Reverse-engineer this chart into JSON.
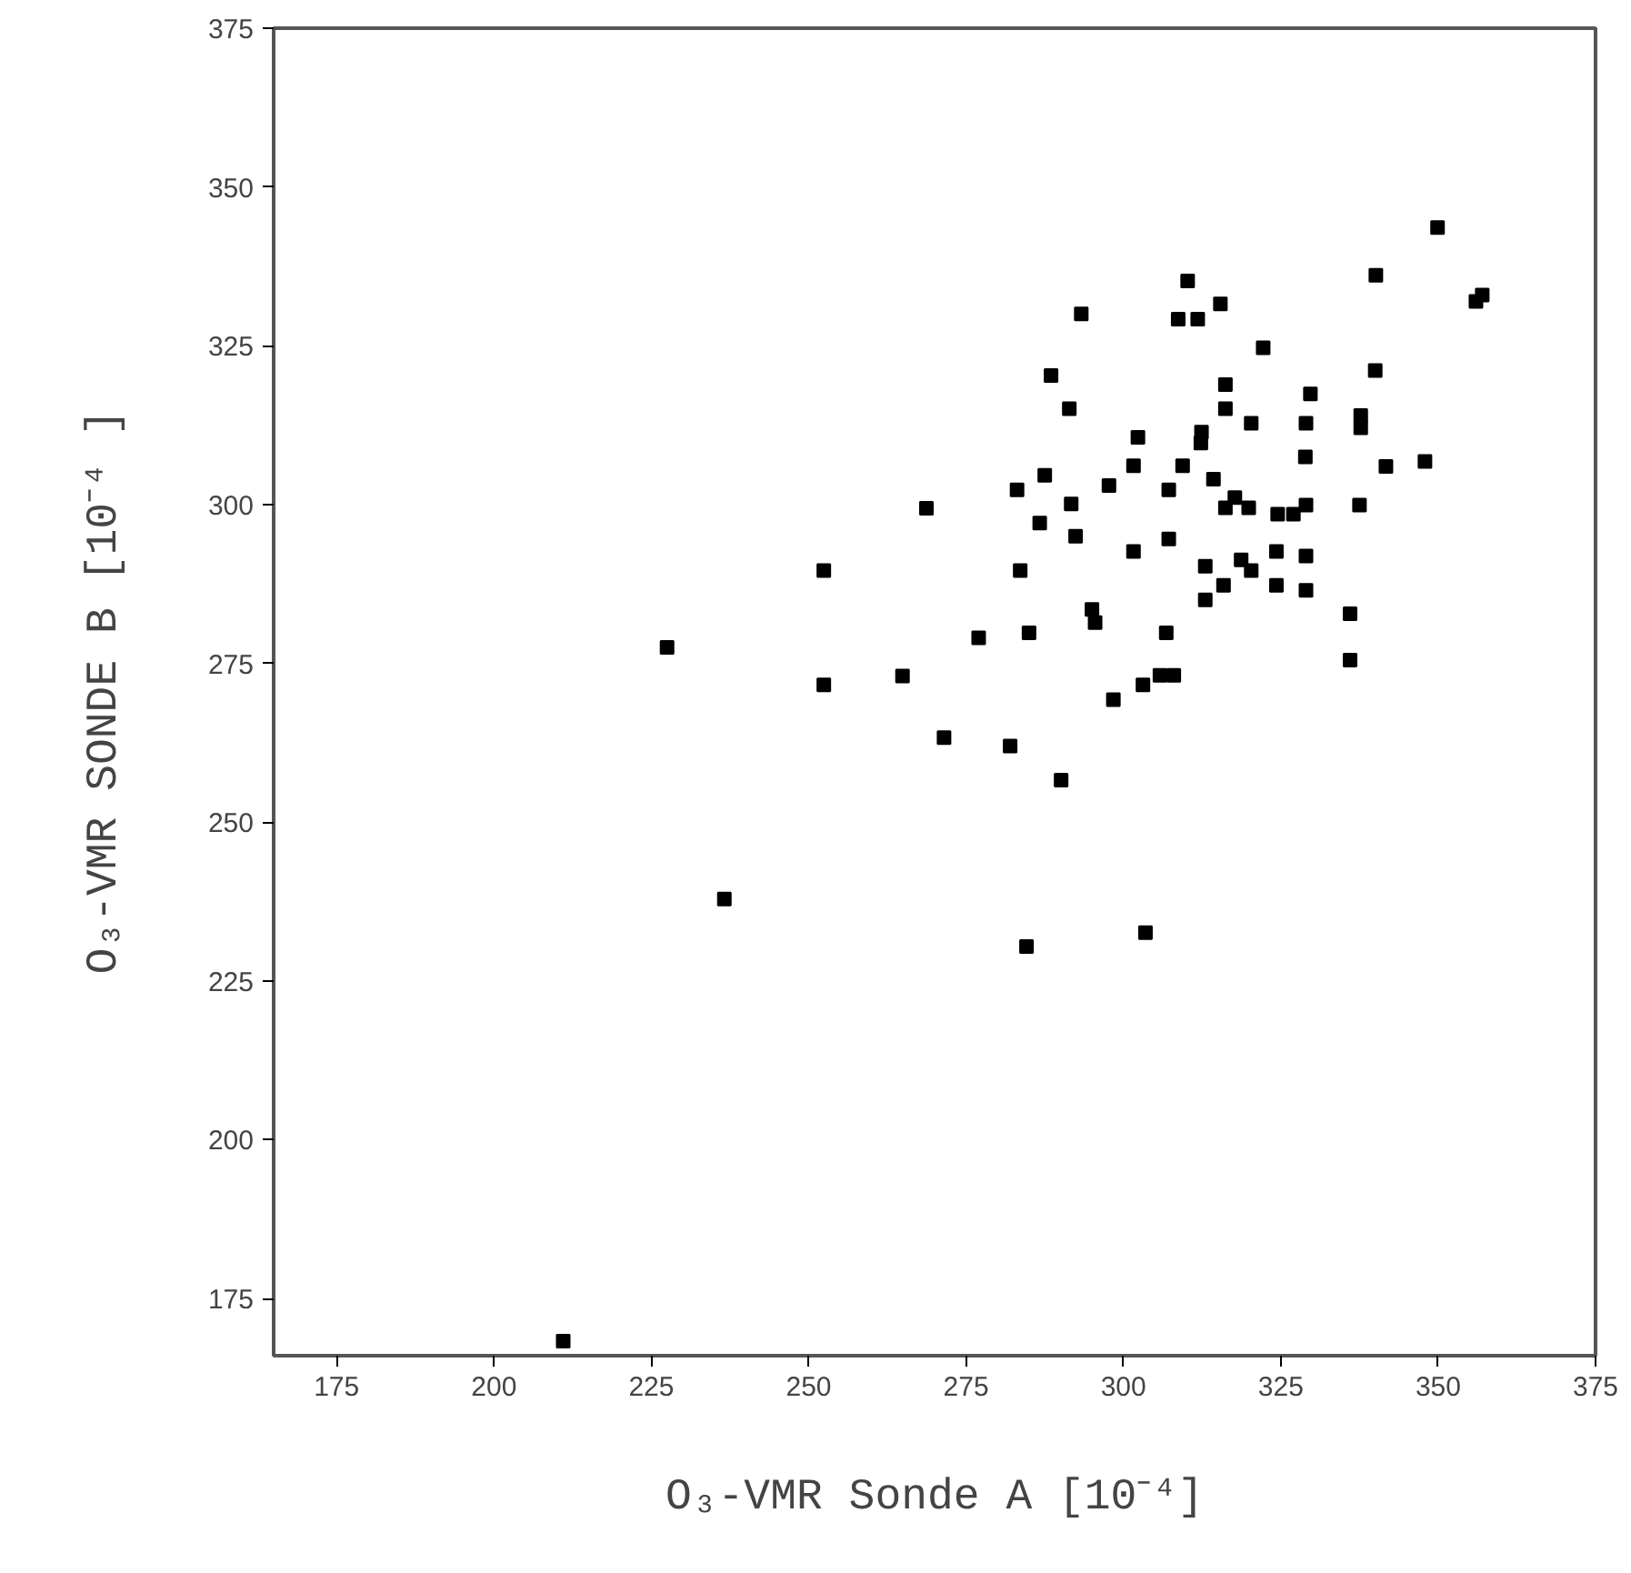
{
  "chart_data": {
    "type": "scatter",
    "xlabel": "O₃-VMR Sonde A [10⁻⁴]",
    "ylabel": "O₃-VMR SONDE B [10⁻⁴ ]",
    "xlim": [
      165,
      375
    ],
    "ylim": [
      166,
      375
    ],
    "xticks": [
      175,
      200,
      225,
      250,
      275,
      300,
      325,
      350,
      375
    ],
    "yticks": [
      175,
      200,
      225,
      250,
      275,
      300,
      325,
      350,
      375
    ],
    "grid": false,
    "marker": "square",
    "series": [
      {
        "color": "#000000",
        "x": [
          211.0,
          236.6,
          284.6,
          303.5,
          227.5,
          310.2,
          308.7,
          311.8,
          293.3,
          288.5,
          291.4,
          302.3,
          301.6,
          309.4,
          287.5,
          283.1,
          297.7,
          291.7,
          307.2,
          268.7,
          286.7,
          292.4,
          307.2,
          349.9,
          340.1,
          356,
          357,
          315.4,
          322.2,
          316.2,
          340.0,
          329.7,
          316.2,
          320.3,
          329.0,
          337.7,
          337.7,
          312.4,
          312.3,
          328.9,
          341.7,
          347.9,
          314.3,
          317.7,
          316.2,
          319.9,
          324.5,
          327.0,
          329.0,
          337.5,
          301.6,
          252.4,
          283.6,
          295.0,
          295.5,
          285.0,
          277.0,
          306.8,
          252.4,
          264.9,
          303.1,
          305.8,
          308.0,
          298.4,
          271.5,
          282.0,
          290.1,
          313.0,
          318.7,
          320.3,
          324.3,
          329.0,
          315.9,
          313.0,
          324.3,
          329.0,
          336.0,
          336.0
        ],
        "values": [
          168.3,
          237.9,
          230.4,
          232.6,
          277.5,
          335.2,
          329.2,
          329.2,
          330.0,
          320.3,
          315.1,
          310.6,
          306.1,
          306.1,
          304.6,
          302.3,
          303.0,
          300.1,
          302.3,
          299.4,
          297.1,
          295.0,
          294.6,
          343.6,
          336.1,
          332,
          333,
          331.6,
          324.7,
          318.9,
          321.1,
          317.4,
          315.1,
          312.8,
          312.8,
          314.0,
          312.1,
          311.4,
          309.7,
          307.5,
          306.0,
          306.8,
          304.0,
          301.1,
          299.5,
          299.5,
          298.5,
          298.5,
          299.9,
          299.9,
          292.6,
          289.6,
          289.6,
          283.5,
          281.4,
          279.8,
          279.0,
          279.8,
          271.6,
          273.0,
          271.6,
          273.1,
          273.1,
          269.3,
          263.3,
          262.0,
          256.6,
          290.3,
          291.3,
          289.6,
          292.6,
          291.9,
          287.3,
          285.0,
          287.3,
          286.5,
          282.8,
          275.5
        ]
      }
    ]
  }
}
